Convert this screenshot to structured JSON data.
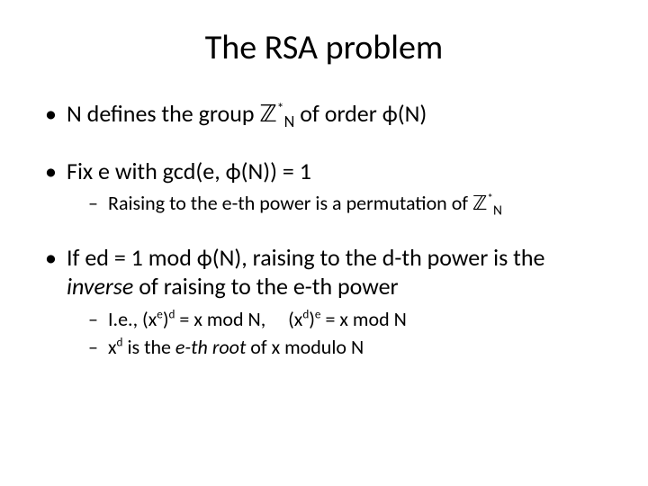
{
  "title": "The RSA problem",
  "bullets": {
    "b1": {
      "pre": "N defines the group ",
      "group_sym": "ℤ",
      "group_sup": "*",
      "group_sub": "N",
      "mid": " of order ",
      "phi": "ϕ",
      "post": "(N)"
    },
    "b2": {
      "pre": "Fix e with gcd(e, ",
      "phi": "ϕ",
      "post": "(N)) = 1",
      "sub": {
        "pre": "Raising to the e-th power is a permutation of ",
        "group_sym": "ℤ",
        "group_sup": "*",
        "group_sub": "N"
      }
    },
    "b3": {
      "pre": "If ed = 1 mod ",
      "phi": "ϕ",
      "mid": "(N), raising to the d-th power is the ",
      "inverse": "inverse",
      "post": " of raising to the e-th power",
      "sub1": {
        "a": "I.e., (x",
        "e": "e",
        "b": ")",
        "d": "d",
        "c": " = x mod N,     (x",
        "d2": "d",
        "e2": ")",
        "e3": "e",
        "f": " = x mod N"
      },
      "sub2": {
        "a": "x",
        "d": "d",
        "b": " is the ",
        "eroot": "e-th root ",
        "c": "of x modulo N"
      }
    }
  },
  "style": {
    "background_color": "#ffffff",
    "text_color": "#000000",
    "title_fontsize": 38,
    "body_fontsize": 26,
    "sub_fontsize": 22,
    "font_family": "Calibri"
  }
}
